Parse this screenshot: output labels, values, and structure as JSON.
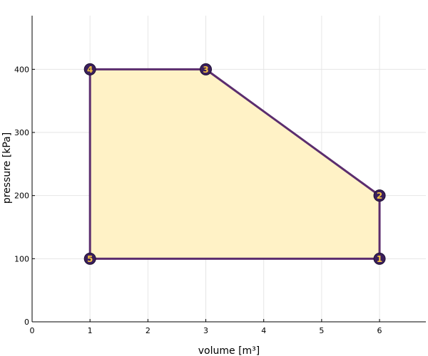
{
  "chart_data": {
    "type": "line",
    "title": "",
    "xlabel": "volume [m³]",
    "ylabel": "pressure [kPa]",
    "xlim": [
      0,
      6.8
    ],
    "ylim": [
      0,
      485
    ],
    "xticks": [
      0,
      1,
      2,
      3,
      4,
      5,
      6
    ],
    "yticks": [
      0,
      100,
      200,
      300,
      400
    ],
    "grid": true,
    "points": [
      {
        "label": "1",
        "x": 6,
        "y": 100
      },
      {
        "label": "2",
        "x": 6,
        "y": 200
      },
      {
        "label": "3",
        "x": 3,
        "y": 400
      },
      {
        "label": "4",
        "x": 1,
        "y": 400
      },
      {
        "label": "5",
        "x": 1,
        "y": 100
      }
    ],
    "closed": true,
    "colors": {
      "fill": "#fff2c6",
      "line": "#5b2d6e",
      "marker": "#3a1f5c",
      "marker_text": "#f5c242",
      "grid": "#e6e6e6"
    }
  }
}
